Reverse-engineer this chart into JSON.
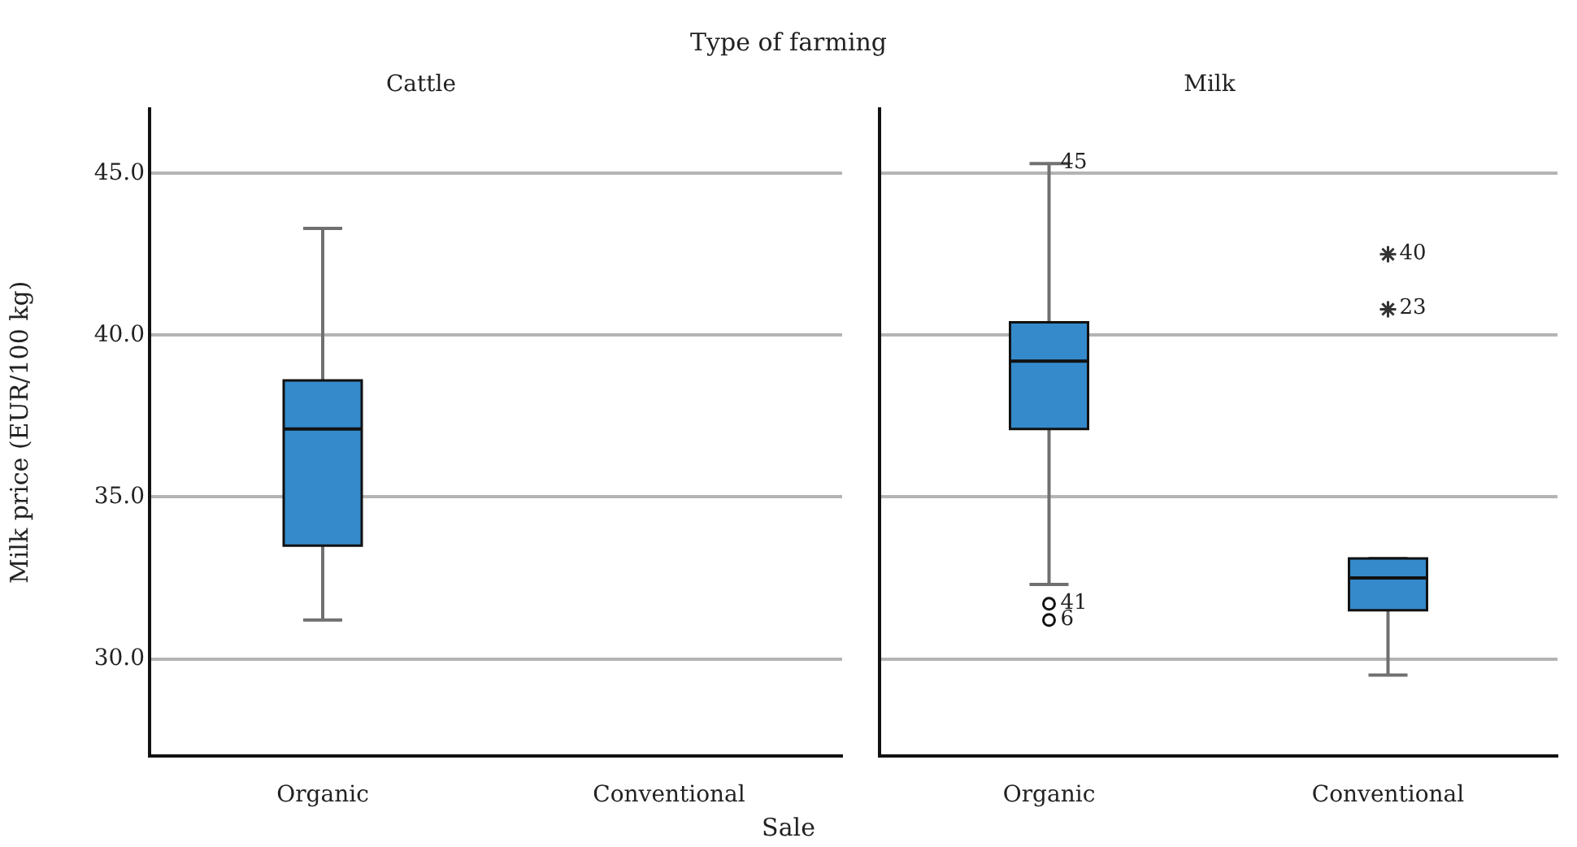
{
  "chart_data": [
    {
      "type": "box",
      "title": "Cattle",
      "xlabel": "Sale",
      "ylabel": "Milk price (EUR/100 kg)",
      "annotations": [
        "Type of farming"
      ],
      "categories": [
        "Organic",
        "Conventional"
      ],
      "color": "#348acb",
      "boxes": [
        {
          "low": 31.2,
          "q1": 33.5,
          "median": 37.1,
          "q3": 38.6,
          "high": 43.3
        },
        null
      ],
      "ylim": [
        27,
        47
      ],
      "yticks": [
        {
          "value": 30,
          "label": "30.0"
        },
        {
          "value": 35,
          "label": "35.0"
        },
        {
          "value": 40,
          "label": "40.0"
        },
        {
          "value": 45,
          "label": "45.0"
        }
      ],
      "grid": "y",
      "legend": false
    },
    {
      "type": "box",
      "title": "Milk",
      "categories": [
        "Organic",
        "Conventional"
      ],
      "color": "#348acb",
      "boxes": [
        {
          "low": 32.3,
          "q1": 37.1,
          "median": 39.2,
          "q3": 40.4,
          "high": 45.3
        },
        {
          "low": 29.5,
          "q1": 31.5,
          "median": 32.5,
          "q3": 33.1,
          "high": 33.1
        }
      ],
      "series": [
        {
          "type": "scatter",
          "x": [
            "Organic",
            "Organic"
          ],
          "values": [
            31.7,
            31.2
          ],
          "marker": "circle",
          "color": "#111111"
        },
        {
          "type": "scatter",
          "x": [
            "Conventional",
            "Conventional"
          ],
          "values": [
            42.5,
            40.8
          ],
          "marker": "cross",
          "color": "#333333"
        }
      ],
      "annotations": [
        {
          "text": "45",
          "x": "Organic",
          "y": 45.3
        },
        {
          "text": "41",
          "x": "Organic",
          "y": 31.7
        },
        {
          "text": "6",
          "x": "Organic",
          "y": 31.2
        },
        {
          "text": "40",
          "x": "Conventional",
          "y": 42.5
        },
        {
          "text": "23",
          "x": "Conventional",
          "y": 40.8
        }
      ],
      "ylim": [
        27,
        47
      ],
      "yticks": [
        30,
        35,
        40,
        45
      ],
      "grid": "y",
      "tick_labels": "x",
      "legend": false
    }
  ]
}
